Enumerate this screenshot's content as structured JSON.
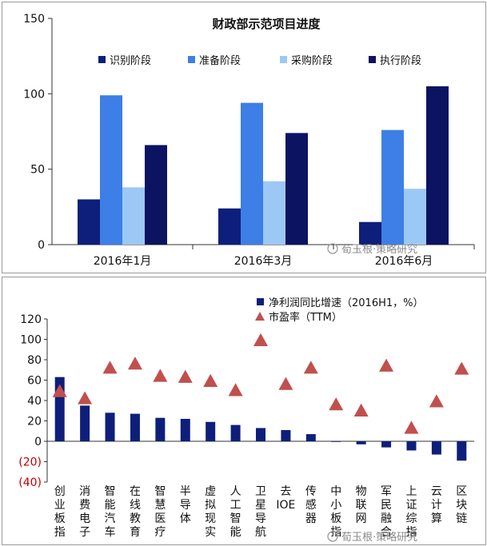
{
  "chart_data": [
    {
      "type": "bar",
      "title": "财政部示范项目进度",
      "categories": [
        "2016年1月",
        "2016年3月",
        "2016年6月"
      ],
      "series": [
        {
          "name": "识别阶段",
          "values": [
            30,
            24,
            15
          ],
          "color": "#0d1f7a"
        },
        {
          "name": "准备阶段",
          "values": [
            99,
            94,
            76
          ],
          "color": "#3d7fe6"
        },
        {
          "name": "采购阶段",
          "values": [
            38,
            42,
            37
          ],
          "color": "#9cc8f5"
        },
        {
          "name": "执行阶段",
          "values": [
            66,
            74,
            105
          ],
          "color": "#0c1360"
        }
      ],
      "ylim": [
        0,
        150
      ],
      "yticks": [
        "150",
        "100",
        "50",
        "0"
      ],
      "legend": "top"
    },
    {
      "type": "bar",
      "categories": [
        [
          "创",
          "业",
          "板",
          "指"
        ],
        [
          "消",
          "费",
          "电",
          "子"
        ],
        [
          "智",
          "能",
          "汽",
          "车"
        ],
        [
          "在",
          "线",
          "教",
          "育"
        ],
        [
          "智",
          "慧",
          "医",
          "疗"
        ],
        [
          "半",
          "导",
          "体"
        ],
        [
          "虚",
          "拟",
          "现",
          "实"
        ],
        [
          "人",
          "工",
          "智",
          "能"
        ],
        [
          "卫",
          "星",
          "导",
          "航"
        ],
        [
          "去",
          "IOE"
        ],
        [
          "传",
          "感",
          "器"
        ],
        [
          "中",
          "小",
          "板",
          "指"
        ],
        [
          "物",
          "联",
          "网"
        ],
        [
          "军",
          "民",
          "融",
          "合"
        ],
        [
          "上",
          "证",
          "综",
          "指"
        ],
        [
          "云",
          "计",
          "算"
        ],
        [
          "区",
          "块",
          "链"
        ]
      ],
      "series": [
        {
          "name": "净利润同比增速（2016H1，%）",
          "kind": "bar",
          "color": "#0d1f7a",
          "values": [
            63,
            35,
            28,
            27,
            23,
            22,
            19,
            16,
            13,
            11,
            7,
            0,
            -3,
            -6,
            -9,
            -13,
            -19
          ]
        },
        {
          "name": "市盈率（TTM）",
          "kind": "triangle",
          "color": "#c0504d",
          "values": [
            49,
            42,
            72,
            76,
            64,
            63,
            59,
            50,
            99,
            56,
            72,
            36,
            30,
            74,
            13,
            39,
            71
          ]
        }
      ],
      "ylim": [
        -40,
        120
      ],
      "yticks": [
        {
          "label": "120",
          "neg": false
        },
        {
          "label": "100",
          "neg": false
        },
        {
          "label": "80",
          "neg": false
        },
        {
          "label": "60",
          "neg": false
        },
        {
          "label": "40",
          "neg": false
        },
        {
          "label": "20",
          "neg": false
        },
        {
          "label": "0",
          "neg": false
        },
        {
          "label": "(20)",
          "neg": true
        },
        {
          "label": "(40)",
          "neg": true
        }
      ],
      "legend": "top-right"
    }
  ],
  "watermark": "荀玉根·策略研究"
}
